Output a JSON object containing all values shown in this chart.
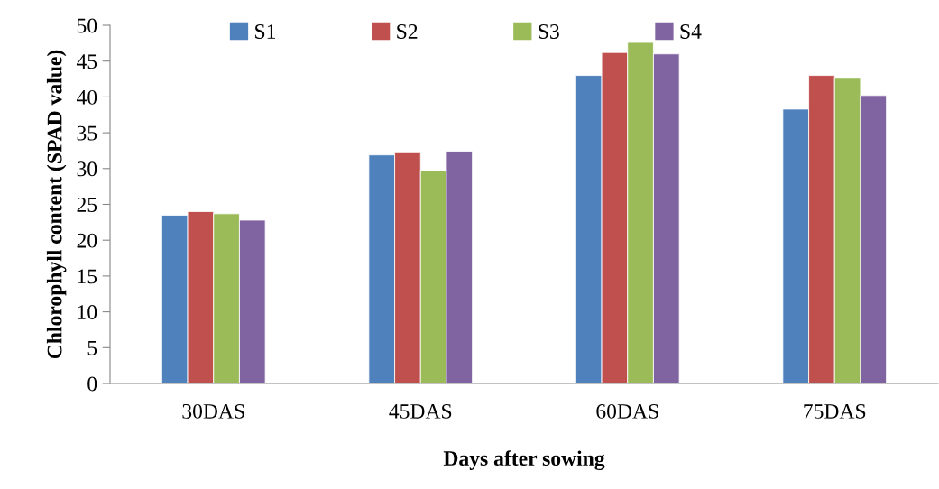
{
  "chart_data": {
    "type": "bar",
    "xlabel": "Days after sowing",
    "ylabel": "Chlorophyll content (SPAD value)",
    "categories": [
      "30DAS",
      "45DAS",
      "60DAS",
      "75DAS"
    ],
    "series": [
      {
        "name": "S1",
        "color": "#4f81bd",
        "values": [
          23.5,
          31.9,
          43.0,
          38.3
        ]
      },
      {
        "name": "S2",
        "color": "#c0504d",
        "values": [
          24.0,
          32.2,
          46.2,
          43.0
        ]
      },
      {
        "name": "S3",
        "color": "#9bbb59",
        "values": [
          23.7,
          29.7,
          47.6,
          42.6
        ]
      },
      {
        "name": "S4",
        "color": "#8064a2",
        "values": [
          22.8,
          32.4,
          46.0,
          40.2
        ]
      }
    ],
    "ylim": [
      0,
      50
    ],
    "yticks": [
      0,
      5,
      10,
      15,
      20,
      25,
      30,
      35,
      40,
      45,
      50
    ],
    "grid": false,
    "legend": "top"
  }
}
